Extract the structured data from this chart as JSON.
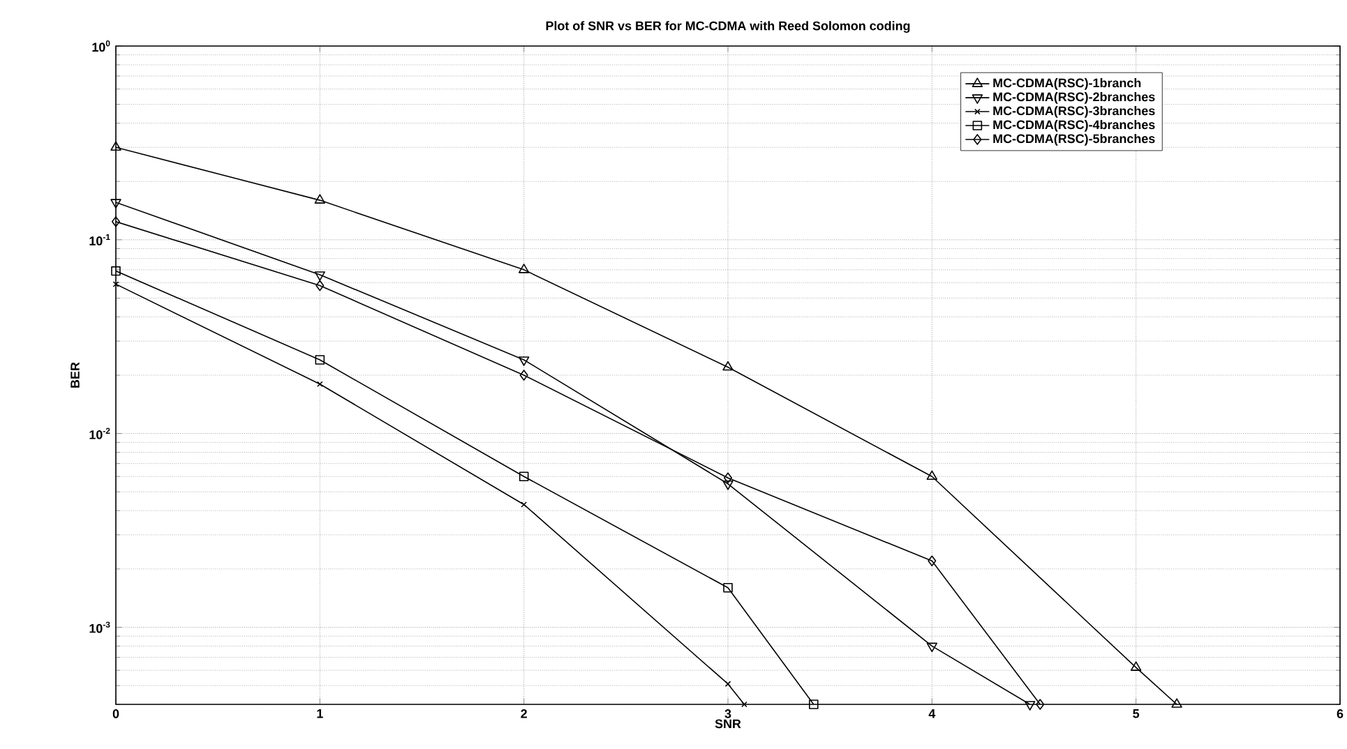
{
  "chart_data": {
    "type": "line",
    "title": "Plot of SNR vs BER for MC-CDMA with Reed Solomon coding",
    "xlabel": "SNR",
    "ylabel": "BER",
    "log": "y",
    "xlim": [
      0,
      6
    ],
    "xticks": [
      0,
      1,
      2,
      3,
      4,
      5,
      6
    ],
    "ylim": [
      0.0004,
      1
    ],
    "yticks": [
      {
        "value": 1,
        "label": "10$^{0}$"
      },
      {
        "value": 0.1,
        "label": "10$^{-1}$"
      },
      {
        "value": 0.01,
        "label": "10$^{-2}$"
      },
      {
        "value": 0.001,
        "label": "10$^{-3}$"
      }
    ],
    "grid": true,
    "legend": "top right",
    "line_style": "solid",
    "series": [
      {
        "name": "MC-CDMA(RSC)-1branch",
        "color": "#000000",
        "marker": "triangle",
        "x": [
          0,
          1,
          2,
          3,
          4,
          5,
          5.2
        ],
        "values": [
          0.3,
          0.16,
          0.07,
          0.022,
          0.006,
          0.00062,
          0.0004
        ]
      },
      {
        "name": "MC-CDMA(RSC)-2branches",
        "color": "#000000",
        "marker": "triangle-down",
        "x": [
          0,
          1,
          2,
          3,
          4,
          4.48
        ],
        "values": [
          0.156,
          0.066,
          0.024,
          0.0055,
          0.0008,
          0.0004
        ]
      },
      {
        "name": "MC-CDMA(RSC)-3branches",
        "color": "#000000",
        "marker": "cross",
        "x": [
          0,
          1,
          2,
          3,
          3.08
        ],
        "values": [
          0.059,
          0.018,
          0.0043,
          0.00051,
          0.0004
        ]
      },
      {
        "name": "MC-CDMA(RSC)-4branches",
        "color": "#000000",
        "marker": "square",
        "x": [
          0,
          1,
          2,
          3,
          3.42
        ],
        "values": [
          0.069,
          0.024,
          0.006,
          0.0016,
          0.0004
        ]
      },
      {
        "name": "MC-CDMA(RSC)-5branches",
        "color": "#000000",
        "marker": "diamond",
        "x": [
          0,
          1,
          2,
          3,
          4,
          4.53
        ],
        "values": [
          0.124,
          0.058,
          0.02,
          0.0059,
          0.0022,
          0.0004
        ]
      }
    ]
  }
}
